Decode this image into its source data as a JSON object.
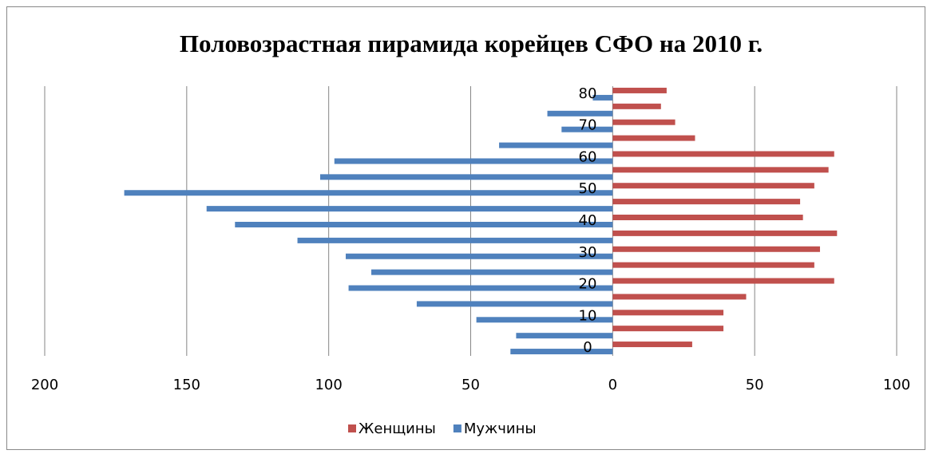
{
  "chart_data": {
    "type": "bar",
    "orientation": "horizontal",
    "title": "Половозрастная пирамида корейцев СФО на 2010 г.",
    "categories": [
      "0",
      null,
      "10",
      null,
      "20",
      null,
      "30",
      null,
      "40",
      null,
      "50",
      null,
      "60",
      null,
      "70",
      null,
      "80"
    ],
    "series": [
      {
        "name": "Женщины",
        "color": "#c0504d",
        "values": [
          28,
          39,
          39,
          47,
          78,
          71,
          73,
          79,
          67,
          66,
          71,
          76,
          78,
          29,
          22,
          17,
          19
        ]
      },
      {
        "name": "Мужчины",
        "color": "#4f81bd",
        "values": [
          -36,
          -34,
          -48,
          -69,
          -93,
          -85,
          -94,
          -111,
          -133,
          -143,
          -172,
          -103,
          -98,
          -40,
          -18,
          -23,
          -7
        ]
      }
    ],
    "xlim": [
      -200,
      100
    ],
    "xticks": [
      {
        "value": -200,
        "label": "200"
      },
      {
        "value": -150,
        "label": "150"
      },
      {
        "value": -100,
        "label": "100"
      },
      {
        "value": -50,
        "label": "50"
      },
      0,
      50,
      100
    ],
    "grid": true,
    "legend": "bottom"
  }
}
